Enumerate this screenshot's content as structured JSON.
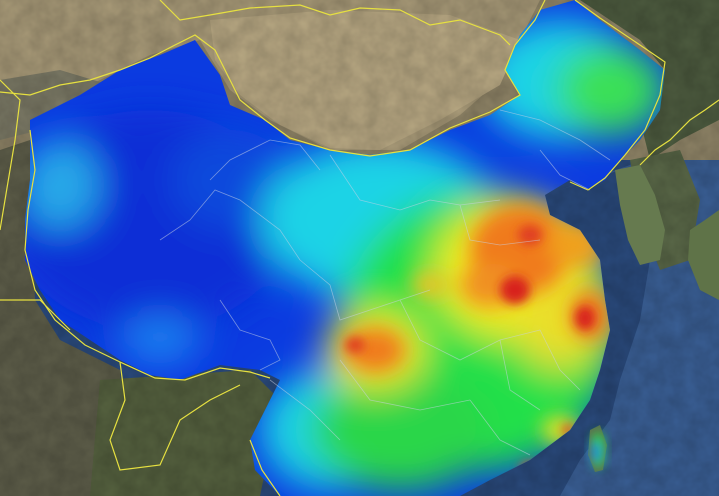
{
  "map": {
    "kind": "satellite pollution heatmap overlay",
    "colors": {
      "ocean": "#2a4a7c",
      "land_desert": "#a89a78",
      "land_mountain": "#6d6a55",
      "land_forest": "#55613f",
      "border": "#e6e040",
      "province_line": "#c9d2e6",
      "scale_low": "#0a2fd6",
      "scale_mid_low": "#1fd3e6",
      "scale_mid": "#24e04a",
      "scale_mid_high": "#f2ea1f",
      "scale_high": "#f07a1a",
      "scale_peak": "#d8201e"
    },
    "hotspots": [
      {
        "region": "north-china-plain",
        "level": "high"
      },
      {
        "region": "sichuan-basin",
        "level": "high"
      },
      {
        "region": "yangtze-delta",
        "level": "peak"
      },
      {
        "region": "pearl-river-delta",
        "level": "medium-high"
      },
      {
        "region": "tibetan-plateau",
        "level": "low"
      },
      {
        "region": "xinjiang",
        "level": "low"
      }
    ]
  }
}
